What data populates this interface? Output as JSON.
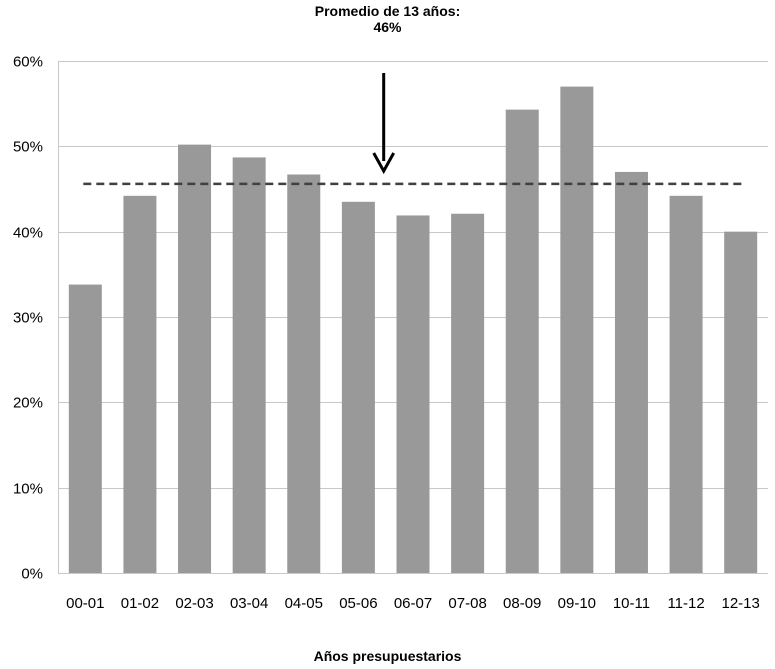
{
  "annotation": {
    "line1": "Promedio de 13 años:",
    "line2": "46%"
  },
  "chart_data": {
    "type": "bar",
    "categories": [
      "00-01",
      "01-02",
      "02-03",
      "03-04",
      "04-05",
      "05-06",
      "06-07",
      "07-08",
      "08-09",
      "09-10",
      "10-11",
      "11-12",
      "12-13"
    ],
    "values": [
      33.8,
      44.2,
      50.2,
      48.7,
      46.7,
      43.5,
      41.9,
      42.1,
      54.3,
      57.0,
      47.0,
      44.2,
      40.0
    ],
    "title": "",
    "xlabel": "Años presupuestarios",
    "ylabel": "",
    "ylim": [
      0,
      60
    ],
    "yticks": [
      0,
      10,
      20,
      30,
      40,
      50,
      60
    ],
    "ytick_format": "%",
    "average": 45.6,
    "grid": "horizontal",
    "bar_color": "#999999",
    "average_line_color": "#404040"
  }
}
